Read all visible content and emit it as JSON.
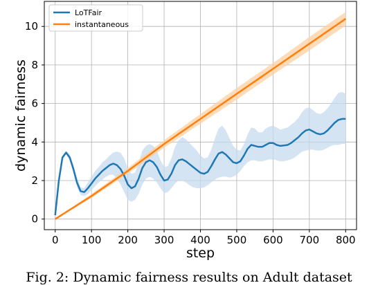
{
  "chart_data": {
    "type": "line",
    "xlabel": "step",
    "ylabel": "dynamic fairness",
    "xlim": [
      -30,
      830
    ],
    "ylim": [
      -0.55,
      11.3
    ],
    "xticks": [
      0,
      100,
      200,
      300,
      400,
      500,
      600,
      700,
      800
    ],
    "yticks": [
      0,
      2,
      4,
      6,
      8,
      10
    ],
    "grid": true,
    "legend_position": "top-left",
    "series": [
      {
        "name": "LoTFair",
        "color": "#1f77b4",
        "band_color": "#c6dbef",
        "x": [
          0,
          10,
          20,
          30,
          40,
          50,
          60,
          70,
          80,
          90,
          100,
          110,
          120,
          130,
          140,
          150,
          160,
          170,
          180,
          190,
          200,
          210,
          220,
          230,
          240,
          250,
          260,
          270,
          280,
          290,
          300,
          310,
          320,
          330,
          340,
          350,
          360,
          370,
          380,
          390,
          400,
          410,
          420,
          430,
          440,
          450,
          460,
          470,
          480,
          490,
          500,
          510,
          520,
          530,
          540,
          550,
          560,
          570,
          580,
          590,
          600,
          610,
          620,
          630,
          640,
          650,
          660,
          670,
          680,
          690,
          700,
          710,
          720,
          730,
          740,
          750,
          760,
          770,
          780,
          790,
          800
        ],
        "y": [
          0.2,
          2.0,
          3.2,
          3.45,
          3.2,
          2.6,
          1.9,
          1.45,
          1.4,
          1.6,
          1.85,
          2.1,
          2.3,
          2.5,
          2.65,
          2.8,
          2.88,
          2.8,
          2.6,
          2.25,
          1.8,
          1.6,
          1.7,
          2.1,
          2.65,
          2.95,
          3.05,
          2.95,
          2.7,
          2.3,
          2.0,
          2.05,
          2.35,
          2.8,
          3.05,
          3.1,
          3.0,
          2.85,
          2.7,
          2.55,
          2.4,
          2.35,
          2.45,
          2.75,
          3.1,
          3.4,
          3.48,
          3.35,
          3.15,
          2.95,
          2.9,
          3.0,
          3.3,
          3.65,
          3.85,
          3.8,
          3.75,
          3.75,
          3.85,
          3.95,
          3.95,
          3.85,
          3.8,
          3.82,
          3.85,
          3.95,
          4.1,
          4.25,
          4.45,
          4.6,
          4.65,
          4.55,
          4.45,
          4.4,
          4.45,
          4.6,
          4.8,
          5.0,
          5.15,
          5.2,
          5.2
        ],
        "lower": [
          0.1,
          1.9,
          3.1,
          3.35,
          3.05,
          2.4,
          1.65,
          1.25,
          1.2,
          1.3,
          1.5,
          1.7,
          1.9,
          2.05,
          2.2,
          2.3,
          2.3,
          2.1,
          1.8,
          1.4,
          1.0,
          0.9,
          1.0,
          1.3,
          1.8,
          2.1,
          2.2,
          2.1,
          1.9,
          1.6,
          1.35,
          1.4,
          1.6,
          1.85,
          2.0,
          2.0,
          1.9,
          1.75,
          1.65,
          1.6,
          1.6,
          1.65,
          1.75,
          1.9,
          2.05,
          2.15,
          2.2,
          2.2,
          2.15,
          2.2,
          2.3,
          2.5,
          2.75,
          2.95,
          3.05,
          3.05,
          3.0,
          3.0,
          3.05,
          3.1,
          3.1,
          3.05,
          3.0,
          3.0,
          3.05,
          3.1,
          3.2,
          3.35,
          3.5,
          3.55,
          3.6,
          3.6,
          3.55,
          3.55,
          3.6,
          3.7,
          3.8,
          3.85,
          3.85,
          3.9,
          3.9
        ],
        "upper": [
          0.3,
          2.1,
          3.3,
          3.55,
          3.35,
          2.8,
          2.15,
          1.65,
          1.6,
          1.9,
          2.2,
          2.5,
          2.7,
          2.95,
          3.1,
          3.3,
          3.45,
          3.5,
          3.45,
          3.15,
          2.65,
          2.35,
          2.4,
          2.95,
          3.55,
          3.8,
          3.9,
          3.8,
          3.55,
          3.05,
          2.7,
          2.75,
          3.15,
          3.75,
          4.1,
          4.25,
          4.15,
          3.95,
          3.75,
          3.55,
          3.3,
          3.15,
          3.2,
          3.6,
          4.2,
          4.7,
          4.85,
          4.6,
          4.2,
          3.8,
          3.6,
          3.55,
          3.9,
          4.4,
          4.75,
          4.7,
          4.5,
          4.5,
          4.7,
          4.8,
          4.85,
          4.75,
          4.65,
          4.7,
          4.75,
          4.9,
          5.05,
          5.25,
          5.55,
          5.75,
          5.8,
          5.65,
          5.5,
          5.45,
          5.55,
          5.75,
          6.0,
          6.3,
          6.55,
          6.6,
          6.5
        ]
      },
      {
        "name": "instantaneous",
        "color": "#ff7f0e",
        "band_color": "#fdd0a2",
        "x": [
          0,
          100,
          200,
          300,
          400,
          500,
          600,
          700,
          800
        ],
        "y": [
          0.0,
          1.2,
          2.5,
          3.9,
          5.2,
          6.5,
          7.8,
          9.1,
          10.4
        ],
        "lower": [
          0.0,
          1.1,
          2.35,
          3.7,
          4.95,
          6.2,
          7.5,
          8.75,
          10.05
        ],
        "upper": [
          0.0,
          1.3,
          2.65,
          4.1,
          5.45,
          6.8,
          8.1,
          9.45,
          10.75
        ]
      }
    ]
  },
  "caption": "Fig. 2: Dynamic fairness results on Adult dataset"
}
